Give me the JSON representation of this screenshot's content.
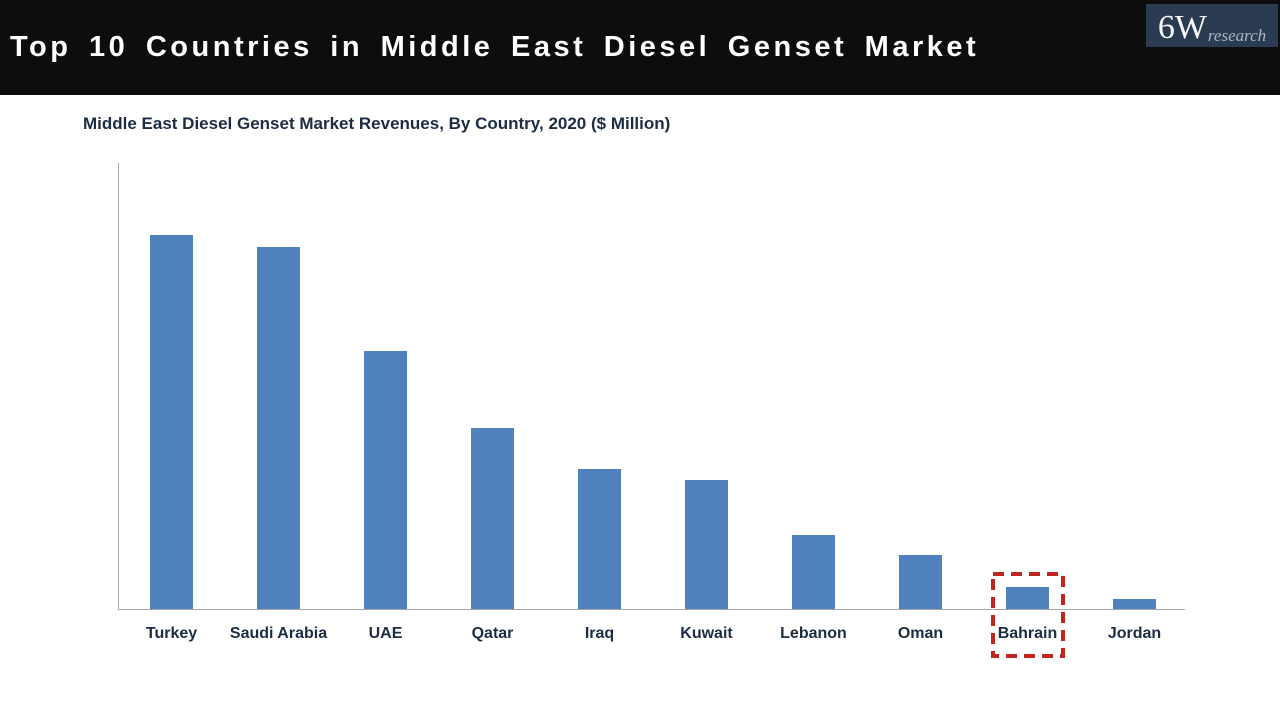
{
  "header": {
    "title": "Top 10 Countries in Middle East Diesel Genset Market",
    "logo": {
      "main": "6W",
      "sub": "research"
    }
  },
  "chart": {
    "subtitle": "Middle East Diesel Genset Market Revenues, By Country, 2020 ($ Million)"
  },
  "chart_data": {
    "type": "bar",
    "title": "Middle East Diesel Genset Market Revenues, By Country, 2020 ($ Million)",
    "categories": [
      "Turkey",
      "Saudi Arabia",
      "UAE",
      "Qatar",
      "Iraq",
      "Kuwait",
      "Lebanon",
      "Oman",
      "Bahrain",
      "Jordan"
    ],
    "values": [
      374,
      362,
      258,
      181,
      140,
      129,
      74,
      54,
      22,
      10
    ],
    "units": "$ Million",
    "value_axis_labeled": false,
    "values_note": "relative estimates read from bar heights; no numeric axis shown",
    "ylim": [
      0,
      446
    ],
    "grid": false,
    "legend": "none",
    "bar_color": "#4f81bd",
    "axis_color": "#a6a6a6",
    "label_color": "#1c2d42",
    "highlighted_category": "Bahrain",
    "highlight_color": "#c0261d"
  }
}
